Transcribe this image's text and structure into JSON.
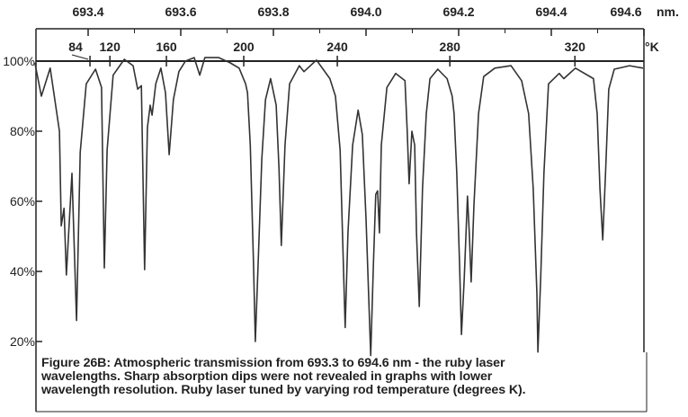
{
  "chart_data": {
    "type": "line",
    "title": "",
    "xlabel": "",
    "ylabel": "",
    "x_unit_label": "nm.",
    "top_axis_unit_label": "°K",
    "xlim": [
      693.287,
      694.6
    ],
    "ylim": [
      0,
      109
    ],
    "x_ticks": [
      {
        "value": 693.4,
        "label": "693.4"
      },
      {
        "value": 693.6,
        "label": "693.6"
      },
      {
        "value": 693.8,
        "label": "693.8"
      },
      {
        "value": 694.0,
        "label": "694.0"
      },
      {
        "value": 694.2,
        "label": "694.2"
      },
      {
        "value": 694.4,
        "label": "694.4"
      },
      {
        "value": 694.6,
        "label": "694.6"
      }
    ],
    "y_ticks": [
      {
        "value": 100,
        "label": "100%"
      },
      {
        "value": 80,
        "label": "80%"
      },
      {
        "value": 60,
        "label": "60%"
      },
      {
        "value": 40,
        "label": "40%"
      },
      {
        "value": 20,
        "label": "20%"
      }
    ],
    "temperature_ticks": [
      {
        "wavelength": 693.404,
        "label": "84"
      },
      {
        "wavelength": 693.447,
        "label": "120"
      },
      {
        "wavelength": 693.569,
        "label": "160"
      },
      {
        "wavelength": 693.736,
        "label": "200"
      },
      {
        "wavelength": 693.938,
        "label": "240"
      },
      {
        "wavelength": 694.181,
        "label": "280"
      },
      {
        "wavelength": 694.451,
        "label": "320"
      }
    ],
    "reference_line": 100,
    "grid": false,
    "line_color": "#333333",
    "series": [
      {
        "x": [
          693.285,
          693.299,
          693.318,
          693.338,
          693.342,
          693.348,
          693.353,
          693.365,
          693.375,
          693.383,
          693.396,
          693.416,
          693.429,
          693.435,
          693.441,
          693.454,
          693.478,
          693.497,
          693.507,
          693.515,
          693.522,
          693.528,
          693.534,
          693.538,
          693.546,
          693.557,
          693.567,
          693.575,
          693.584,
          693.596,
          693.61,
          693.629,
          693.641,
          693.652,
          693.682,
          693.707,
          693.726,
          693.74,
          693.744,
          693.75,
          693.757,
          693.761,
          693.767,
          693.775,
          693.783,
          693.794,
          693.806,
          693.812,
          693.817,
          693.825,
          693.835,
          693.856,
          693.866,
          693.893,
          693.922,
          693.934,
          693.944,
          693.951,
          693.955,
          693.961,
          693.971,
          693.983,
          693.992,
          694.0,
          694.01,
          694.016,
          694.021,
          694.025,
          694.029,
          694.033,
          694.045,
          694.064,
          694.084,
          694.089,
          694.093,
          694.099,
          694.105,
          694.109,
          694.115,
          694.122,
          694.13,
          694.138,
          694.155,
          694.175,
          694.186,
          694.19,
          694.196,
          694.202,
          694.206,
          694.212,
          694.219,
          694.223,
          694.227,
          694.233,
          694.243,
          694.254,
          694.278,
          694.313,
          694.336,
          694.351,
          694.361,
          694.369,
          694.371,
          694.377,
          694.384,
          694.394,
          694.417,
          694.427,
          694.452,
          694.491,
          694.499,
          694.505,
          694.511,
          694.517,
          694.524,
          694.536,
          694.569,
          694.598
        ],
        "y": [
          99.5,
          90,
          98,
          80,
          53,
          58,
          39,
          68,
          26,
          74,
          93.5,
          97.7,
          92.5,
          41,
          74.6,
          96,
          100.5,
          98.7,
          92,
          93,
          40.5,
          81,
          87.4,
          84.6,
          93.5,
          98,
          91,
          73.3,
          89,
          97,
          100,
          101,
          96,
          101,
          101,
          99.5,
          98,
          93.5,
          91,
          76,
          42,
          20,
          42,
          72,
          89,
          95,
          87.4,
          69.5,
          47.4,
          76,
          93.5,
          98.7,
          97,
          100.3,
          95,
          90,
          74.6,
          42,
          24,
          51,
          76,
          86,
          79,
          55,
          16,
          42,
          62,
          63,
          51,
          76,
          92.5,
          96.5,
          94.4,
          80,
          65,
          80,
          76,
          51,
          30,
          63.6,
          85,
          95,
          97.7,
          95,
          90,
          85,
          68,
          42,
          22,
          38,
          61.5,
          51,
          37,
          59,
          85,
          95.6,
          98,
          98.7,
          94.4,
          85,
          63.6,
          33.6,
          17,
          38,
          68,
          93.5,
          96.5,
          95,
          98,
          95,
          85,
          63.6,
          49,
          68,
          92,
          97.7,
          98.7,
          98
        ]
      }
    ],
    "caption": [
      "Figure 26B: Atmospheric transmission from 693.3 to 694.6 nm - the ruby laser",
      "wavelengths. Sharp absorption dips were not revealed in graphs with lower",
      "wavelength resolution. Ruby laser tuned by varying rod temperature (degrees K)."
    ]
  }
}
